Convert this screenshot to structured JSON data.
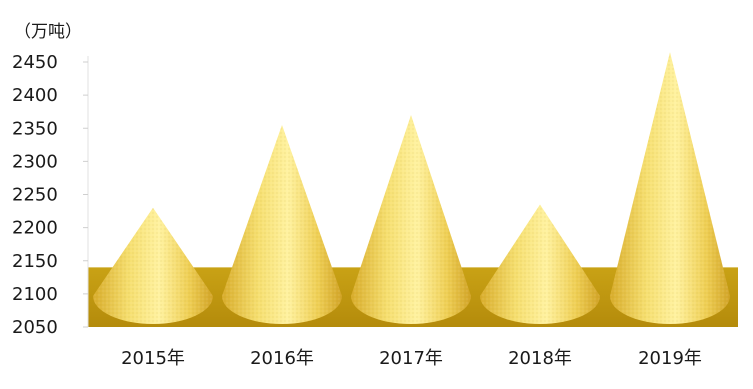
{
  "chart_data": {
    "type": "bar",
    "shape": "cone",
    "unit_label": "（万吨）",
    "categories": [
      "2015年",
      "2016年",
      "2017年",
      "2018年",
      "2019年"
    ],
    "values": [
      2230,
      2355,
      2370,
      2235,
      2465
    ],
    "ylim": [
      2050,
      2450
    ],
    "yticks": [
      2050,
      2100,
      2150,
      2200,
      2250,
      2300,
      2350,
      2400,
      2450
    ],
    "grid": false,
    "colors": {
      "cone_light": "#fff4a8",
      "cone_mid": "#f3d75c",
      "cone_dark": "#d9ad2c",
      "floor_top": "#c79f13",
      "floor_front": "#b8900e",
      "axis": "#e0e0e0"
    }
  }
}
